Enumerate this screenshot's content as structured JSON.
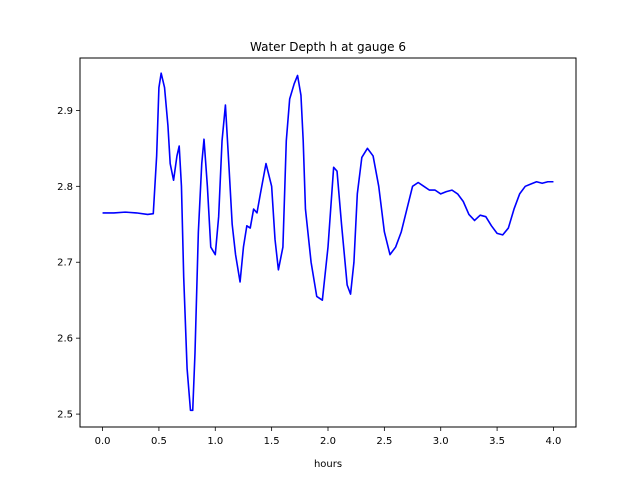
{
  "chart_data": {
    "type": "line",
    "title": "Water Depth h at gauge 6",
    "xlabel": "hours",
    "ylabel": "",
    "xlim": [
      -0.2,
      4.2
    ],
    "ylim": [
      2.483,
      2.969
    ],
    "xticks": [
      0.0,
      0.5,
      1.0,
      1.5,
      2.0,
      2.5,
      3.0,
      3.5,
      4.0
    ],
    "xtick_labels": [
      "0.0",
      "0.5",
      "1.0",
      "1.5",
      "2.0",
      "2.5",
      "3.0",
      "3.5",
      "4.0"
    ],
    "yticks": [
      2.5,
      2.6,
      2.7,
      2.8,
      2.9
    ],
    "ytick_labels": [
      "2.5",
      "2.6",
      "2.7",
      "2.8",
      "2.9"
    ],
    "grid": false,
    "series_color": "#0000ff",
    "series": [
      {
        "x": [
          0.0,
          0.1,
          0.2,
          0.3,
          0.4,
          0.45,
          0.48,
          0.5,
          0.52,
          0.55,
          0.58,
          0.6,
          0.63,
          0.66,
          0.68,
          0.7,
          0.72,
          0.75,
          0.78,
          0.8,
          0.82,
          0.85,
          0.88,
          0.9,
          0.93,
          0.96,
          1.0,
          1.03,
          1.06,
          1.09,
          1.12,
          1.15,
          1.18,
          1.22,
          1.25,
          1.28,
          1.31,
          1.34,
          1.37,
          1.4,
          1.45,
          1.5,
          1.53,
          1.56,
          1.6,
          1.63,
          1.66,
          1.7,
          1.73,
          1.76,
          1.78,
          1.8,
          1.85,
          1.9,
          1.95,
          2.0,
          2.05,
          2.08,
          2.12,
          2.17,
          2.2,
          2.23,
          2.26,
          2.3,
          2.35,
          2.4,
          2.45,
          2.5,
          2.55,
          2.6,
          2.65,
          2.7,
          2.75,
          2.8,
          2.85,
          2.9,
          2.95,
          3.0,
          3.05,
          3.1,
          3.15,
          3.2,
          3.25,
          3.3,
          3.35,
          3.4,
          3.45,
          3.5,
          3.55,
          3.6,
          3.65,
          3.7,
          3.75,
          3.8,
          3.85,
          3.9,
          3.95,
          4.0
        ],
        "values": [
          2.765,
          2.765,
          2.766,
          2.765,
          2.763,
          2.764,
          2.84,
          2.93,
          2.949,
          2.93,
          2.88,
          2.83,
          2.808,
          2.84,
          2.853,
          2.8,
          2.68,
          2.56,
          2.505,
          2.505,
          2.58,
          2.74,
          2.83,
          2.862,
          2.8,
          2.72,
          2.71,
          2.76,
          2.86,
          2.907,
          2.83,
          2.75,
          2.71,
          2.674,
          2.72,
          2.748,
          2.745,
          2.77,
          2.765,
          2.79,
          2.83,
          2.8,
          2.73,
          2.69,
          2.72,
          2.86,
          2.915,
          2.935,
          2.946,
          2.92,
          2.86,
          2.77,
          2.7,
          2.655,
          2.65,
          2.72,
          2.825,
          2.82,
          2.75,
          2.67,
          2.658,
          2.7,
          2.79,
          2.838,
          2.85,
          2.84,
          2.8,
          2.74,
          2.71,
          2.72,
          2.74,
          2.77,
          2.8,
          2.805,
          2.8,
          2.795,
          2.795,
          2.79,
          2.793,
          2.795,
          2.79,
          2.78,
          2.763,
          2.755,
          2.762,
          2.76,
          2.748,
          2.738,
          2.736,
          2.745,
          2.77,
          2.79,
          2.8,
          2.803,
          2.806,
          2.804,
          2.806,
          2.806
        ]
      }
    ]
  }
}
